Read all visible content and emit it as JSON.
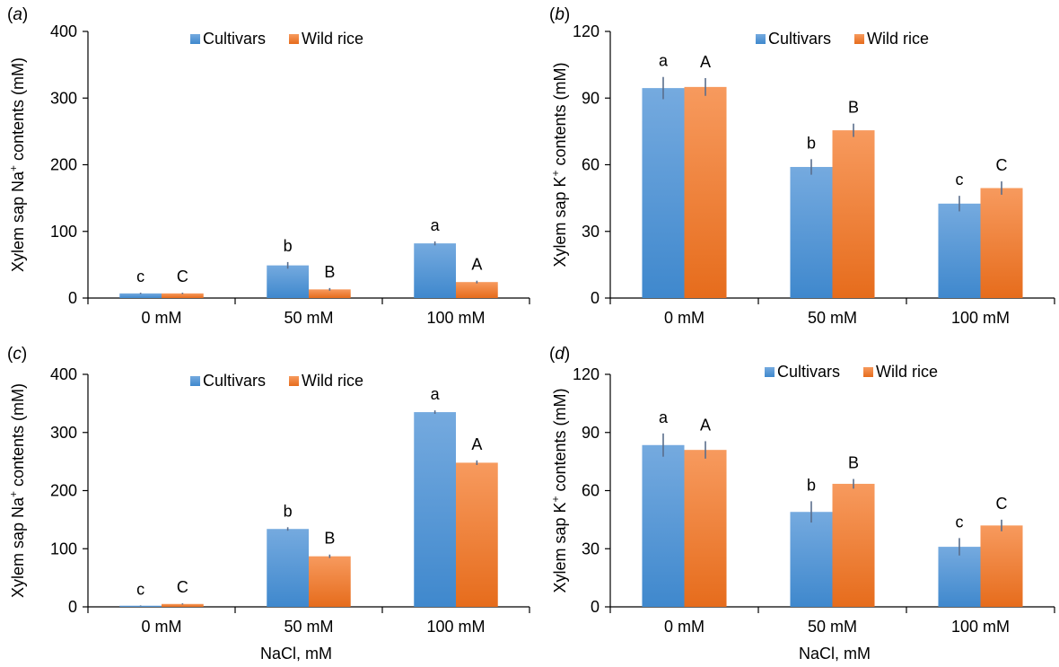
{
  "colors": {
    "cultivars_top": "#75aadf",
    "cultivars_bottom": "#3f88cd",
    "wild_top": "#f79a5e",
    "wild_bottom": "#e66c1c",
    "error_bar": "#5a6e8c",
    "axis": "#000000"
  },
  "xlabel": "NaCl, mM",
  "chart_data": [
    {
      "panel_label": "a",
      "type": "bar",
      "categories": [
        "0 mM",
        "50 mM",
        "100 mM"
      ],
      "ylabel_pre": "Xylem sap Na",
      "ylabel_sup": "+",
      "ylabel_post": " contents (mM)",
      "ylim": [
        0,
        400
      ],
      "yticks": [
        0,
        100,
        200,
        300,
        400
      ],
      "xlabel": "",
      "legend_position": "top-center",
      "series": [
        {
          "name": "Cultivars",
          "values": [
            7,
            49,
            82
          ],
          "errors": [
            1,
            5,
            3
          ],
          "letters": [
            "c",
            "b",
            "a"
          ]
        },
        {
          "name": "Wild rice",
          "values": [
            7,
            13,
            24
          ],
          "errors": [
            1,
            2,
            2
          ],
          "letters": [
            "C",
            "B",
            "A"
          ]
        }
      ]
    },
    {
      "panel_label": "b",
      "type": "bar",
      "categories": [
        "0 mM",
        "50 mM",
        "100 mM"
      ],
      "ylabel_pre": "Xylem sap K",
      "ylabel_sup": "+",
      "ylabel_post": " contents (mM)",
      "ylim": [
        0,
        120
      ],
      "yticks": [
        0,
        30,
        60,
        90,
        120
      ],
      "xlabel": "",
      "legend_position": "top-center",
      "series": [
        {
          "name": "Cultivars",
          "values": [
            94.5,
            59,
            42.5
          ],
          "errors": [
            5,
            3.5,
            3.5
          ],
          "letters": [
            "a",
            "b",
            "c"
          ]
        },
        {
          "name": "Wild rice",
          "values": [
            95,
            75.5,
            49.5
          ],
          "errors": [
            4,
            3,
            3
          ],
          "letters": [
            "A",
            "B",
            "C"
          ]
        }
      ]
    },
    {
      "panel_label": "c",
      "type": "bar",
      "categories": [
        "0 mM",
        "50 mM",
        "100 mM"
      ],
      "ylabel_pre": "Xylem sap Na",
      "ylabel_sup": "+",
      "ylabel_post": " contents (mM)",
      "ylim": [
        0,
        400
      ],
      "yticks": [
        0,
        100,
        200,
        300,
        400
      ],
      "xlabel": "NaCl, mM",
      "legend_position": "top-center",
      "series": [
        {
          "name": "Cultivars",
          "values": [
            2,
            134,
            335
          ],
          "errors": [
            0.5,
            3,
            3
          ],
          "letters": [
            "c",
            "b",
            "a"
          ]
        },
        {
          "name": "Wild rice",
          "values": [
            5,
            87,
            248
          ],
          "errors": [
            1,
            3,
            4
          ],
          "letters": [
            "C",
            "B",
            "A"
          ]
        }
      ]
    },
    {
      "panel_label": "d",
      "type": "bar",
      "categories": [
        "0 mM",
        "50 mM",
        "100 mM"
      ],
      "ylabel_pre": "Xylem sap K",
      "ylabel_sup": "+",
      "ylabel_post": " contents (mM)",
      "ylim": [
        0,
        120
      ],
      "yticks": [
        0,
        30,
        60,
        90,
        120
      ],
      "xlabel": "NaCl, mM",
      "legend_position": "top-center",
      "series": [
        {
          "name": "Cultivars",
          "values": [
            83.5,
            49,
            31
          ],
          "errors": [
            6,
            5.5,
            4.5
          ],
          "letters": [
            "a",
            "b",
            "c"
          ]
        },
        {
          "name": "Wild rice",
          "values": [
            81,
            63.5,
            42
          ],
          "errors": [
            4.5,
            2.5,
            3
          ],
          "letters": [
            "A",
            "B",
            "C"
          ]
        }
      ]
    }
  ]
}
